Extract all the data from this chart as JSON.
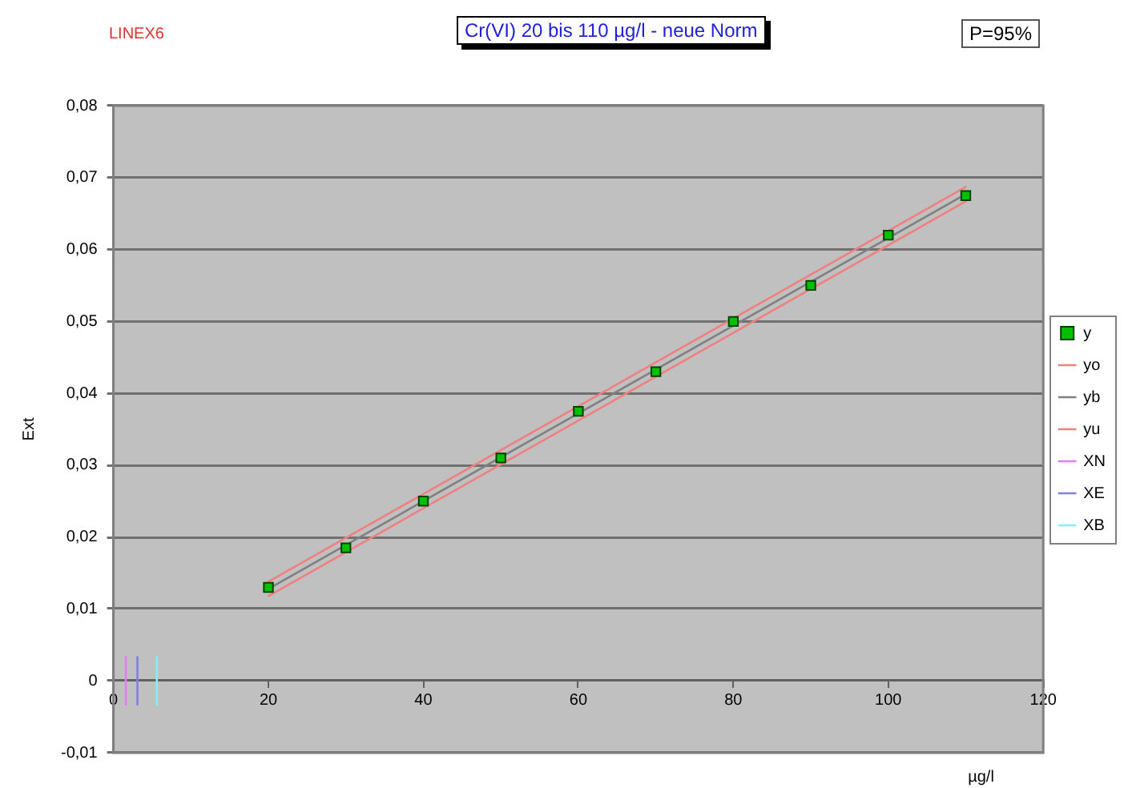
{
  "chart_data": {
    "type": "scatter",
    "title": "Cr(VI) 20 bis 110 µg/l - neue Norm",
    "xlabel": "µg/l",
    "ylabel": "Ext",
    "annotations": [
      "LINEX6",
      "P=95%"
    ],
    "xlim": [
      0,
      120
    ],
    "xticks": [
      0,
      20,
      40,
      60,
      80,
      100,
      120
    ],
    "ylim": [
      -0.01,
      0.08
    ],
    "yticks": [
      {
        "value": -0.01,
        "label": "-0,01"
      },
      0,
      {
        "value": 0.01,
        "label": "0,01"
      },
      {
        "value": 0.02,
        "label": "0,02"
      },
      {
        "value": 0.03,
        "label": "0,03"
      },
      {
        "value": 0.04,
        "label": "0,04"
      },
      {
        "value": 0.05,
        "label": "0,05"
      },
      {
        "value": 0.06,
        "label": "0,06"
      },
      {
        "value": 0.07,
        "label": "0,07"
      },
      {
        "value": 0.08,
        "label": "0,08"
      }
    ],
    "grid": "y",
    "legend": "right",
    "marker": "square",
    "series": [
      {
        "name": "y",
        "type": "scatter",
        "color": "#00c000",
        "x": [
          20,
          30,
          40,
          50,
          60,
          70,
          80,
          90,
          100,
          110
        ],
        "values": [
          0.013,
          0.0185,
          0.025,
          0.031,
          0.0375,
          0.043,
          0.05,
          0.055,
          0.062,
          0.0675
        ]
      },
      {
        "name": "yo",
        "type": "line",
        "marker": "none",
        "color": "#f08080",
        "x": [
          20,
          110
        ],
        "values": [
          0.0138,
          0.0687
        ]
      },
      {
        "name": "yb",
        "type": "line",
        "marker": "none",
        "color": "#808080",
        "x": [
          20,
          110
        ],
        "values": [
          0.0128,
          0.0677
        ]
      },
      {
        "name": "yu",
        "type": "line",
        "marker": "none",
        "color": "#f08080",
        "x": [
          20,
          110
        ],
        "values": [
          0.0118,
          0.0667
        ]
      },
      {
        "name": "XN",
        "type": "line",
        "marker": "none",
        "color": "#e080f0",
        "x": [
          1.6,
          1.6
        ],
        "values": [
          -0.0033,
          0.0033
        ]
      },
      {
        "name": "XE",
        "type": "line",
        "marker": "none",
        "color": "#8080e0",
        "x": [
          3.1,
          3.1
        ],
        "values": [
          -0.0033,
          0.0033
        ]
      },
      {
        "name": "XB",
        "type": "line",
        "marker": "none",
        "color": "#80f0f0",
        "x": [
          5.6,
          5.6
        ],
        "values": [
          -0.0033,
          0.0033
        ]
      }
    ]
  }
}
